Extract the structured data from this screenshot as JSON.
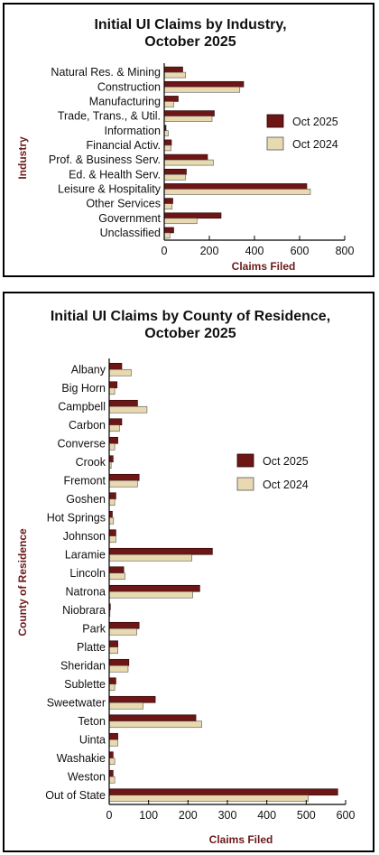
{
  "colors": {
    "current": "#6e1515",
    "previous": "#e8d9b0",
    "axis_label": "#6b1a1a"
  },
  "chart_data": [
    {
      "type": "bar",
      "orientation": "horizontal",
      "title_lines": [
        "Initial UI Claims by Industry,",
        "October 2025"
      ],
      "ylabel": "Industry",
      "xlabel": "Claims Filed",
      "xlim": [
        0,
        800
      ],
      "xticks": [
        0,
        200,
        400,
        600,
        800
      ],
      "legend_position": "right",
      "categories": [
        "Natural Res. & Mining",
        "Construction",
        "Manufacturing",
        "Trade, Trans., & Util.",
        "Information",
        "Financial Activ.",
        "Prof. & Business Serv.",
        "Ed. & Health Serv.",
        "Leisure & Hospitality",
        "Other Services",
        "Government",
        "Unclassified"
      ],
      "series": [
        {
          "name": "Oct 2025",
          "values": [
            82,
            352,
            62,
            222,
            8,
            32,
            192,
            98,
            632,
            38,
            252,
            42
          ]
        },
        {
          "name": "Oct 2024",
          "values": [
            95,
            335,
            42,
            212,
            18,
            30,
            218,
            95,
            648,
            35,
            145,
            25
          ]
        }
      ]
    },
    {
      "type": "bar",
      "orientation": "horizontal",
      "title_lines": [
        "Initial UI Claims by County of Residence,",
        "October 2025"
      ],
      "ylabel": "County of Residence",
      "xlabel": "Claims Filed",
      "xlim": [
        0,
        600
      ],
      "xticks": [
        0,
        100,
        200,
        300,
        400,
        500,
        600
      ],
      "legend_position": "right",
      "categories": [
        "Albany",
        "Big Horn",
        "Campbell",
        "Carbon",
        "Converse",
        "Crook",
        "Fremont",
        "Goshen",
        "Hot Springs",
        "Johnson",
        "Laramie",
        "Lincoln",
        "Natrona",
        "Niobrara",
        "Park",
        "Platte",
        "Sheridan",
        "Sublette",
        "Sweetwater",
        "Teton",
        "Uinta",
        "Washakie",
        "Weston",
        "Out of State"
      ],
      "series": [
        {
          "name": "Oct 2025",
          "values": [
            32,
            20,
            72,
            32,
            22,
            10,
            76,
            17,
            8,
            17,
            262,
            37,
            230,
            3,
            76,
            22,
            50,
            17,
            117,
            220,
            22,
            10,
            10,
            580
          ]
        },
        {
          "name": "Oct 2024",
          "values": [
            56,
            14,
            96,
            26,
            14,
            5,
            72,
            14,
            11,
            17,
            210,
            40,
            212,
            2,
            70,
            22,
            48,
            14,
            86,
            235,
            22,
            14,
            14,
            505
          ]
        }
      ]
    }
  ]
}
